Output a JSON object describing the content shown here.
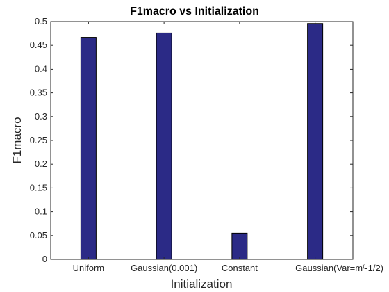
{
  "chart_data": {
    "type": "bar",
    "title": "F1macro vs Initialization",
    "xlabel": "Initialization",
    "ylabel": "F1macro",
    "categories": [
      "Uniform",
      "Gaussian(0.001)",
      "Constant",
      "Gaussian(Var=m^(-1/2)"
    ],
    "values": [
      0.467,
      0.476,
      0.055,
      0.496
    ],
    "ylim": [
      0,
      0.5
    ],
    "yticks": [
      0,
      0.05,
      0.1,
      0.15,
      0.2,
      0.25,
      0.3,
      0.35,
      0.4,
      0.45,
      0.5
    ],
    "ytick_labels": [
      "0",
      "0.05",
      "0.1",
      "0.15",
      "0.2",
      "0.25",
      "0.3",
      "0.35",
      "0.4",
      "0.45",
      "0.5"
    ],
    "xtick_labels": {
      "Uniform": "Uniform",
      "Gaussian(0.001)": "Gaussian(0.001)",
      "Constant": "Constant",
      "Gaussian(Var=m^(-1/2)": "Gaussian(Var=m⁽-1/2)"
    },
    "grid": false,
    "legend": "none",
    "colors": {
      "bar_fill": "#2b2a86",
      "bar_edge": "#000000",
      "axis": "#262626"
    }
  }
}
